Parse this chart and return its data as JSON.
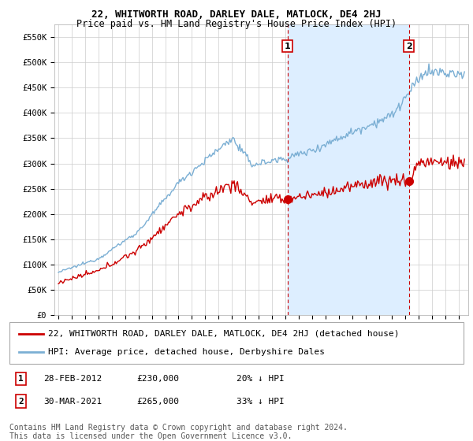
{
  "title": "22, WHITWORTH ROAD, DARLEY DALE, MATLOCK, DE4 2HJ",
  "subtitle": "Price paid vs. HM Land Registry's House Price Index (HPI)",
  "ylim": [
    0,
    575000
  ],
  "yticks": [
    0,
    50000,
    100000,
    150000,
    200000,
    250000,
    300000,
    350000,
    400000,
    450000,
    500000,
    550000
  ],
  "ytick_labels": [
    "£0",
    "£50K",
    "£100K",
    "£150K",
    "£200K",
    "£250K",
    "£300K",
    "£350K",
    "£400K",
    "£450K",
    "£500K",
    "£550K"
  ],
  "sale1_date": 2012.15,
  "sale1_price": 230000,
  "sale1_label": "1",
  "sale2_date": 2021.25,
  "sale2_price": 265000,
  "sale2_label": "2",
  "line_color_property": "#cc0000",
  "line_color_hpi": "#7bafd4",
  "vline_color": "#cc0000",
  "shade_color": "#ddeeff",
  "grid_color": "#cccccc",
  "background_color": "#ffffff",
  "legend_label_property": "22, WHITWORTH ROAD, DARLEY DALE, MATLOCK, DE4 2HJ (detached house)",
  "legend_label_hpi": "HPI: Average price, detached house, Derbyshire Dales",
  "footnote": "Contains HM Land Registry data © Crown copyright and database right 2024.\nThis data is licensed under the Open Government Licence v3.0.",
  "title_fontsize": 9,
  "subtitle_fontsize": 8.5,
  "tick_fontsize": 7.5,
  "legend_fontsize": 8,
  "footnote_fontsize": 7
}
